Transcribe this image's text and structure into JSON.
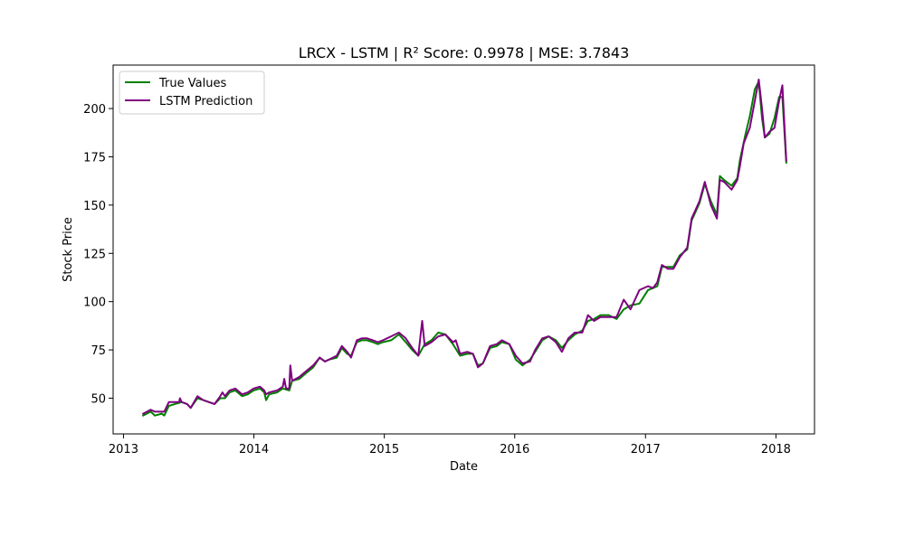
{
  "chart_data": {
    "type": "line",
    "title": "LRCX - LSTM | R² Score: 0.9978 | MSE: 3.7843",
    "xlabel": "Date",
    "ylabel": "Stock Price",
    "xlim": [
      "2012-12-03",
      "2018-04-19"
    ],
    "ylim": [
      31.5,
      222.5
    ],
    "x_ticks": [
      {
        "value": "2013-01-01",
        "label": "2013"
      },
      {
        "value": "2014-01-01",
        "label": "2014"
      },
      {
        "value": "2015-01-01",
        "label": "2015"
      },
      {
        "value": "2016-01-01",
        "label": "2016"
      },
      {
        "value": "2017-01-01",
        "label": "2017"
      },
      {
        "value": "2018-01-01",
        "label": "2018"
      }
    ],
    "y_ticks": [
      50,
      75,
      100,
      125,
      150,
      175,
      200
    ],
    "grid": false,
    "legend_position": "upper left",
    "series": [
      {
        "name": "True Values",
        "color": "#008000",
        "points": [
          [
            "2013-02-25",
            41
          ],
          [
            "2013-03-18",
            43
          ],
          [
            "2013-03-30",
            41
          ],
          [
            "2013-04-18",
            42
          ],
          [
            "2013-04-25",
            41
          ],
          [
            "2013-05-08",
            46
          ],
          [
            "2013-05-25",
            47
          ],
          [
            "2013-06-13",
            48
          ],
          [
            "2013-06-28",
            47
          ],
          [
            "2013-07-08",
            45
          ],
          [
            "2013-07-27",
            50
          ],
          [
            "2013-08-12",
            49
          ],
          [
            "2013-08-28",
            48
          ],
          [
            "2013-09-13",
            47
          ],
          [
            "2013-09-29",
            50
          ],
          [
            "2013-10-12",
            50
          ],
          [
            "2013-10-25",
            53
          ],
          [
            "2013-11-10",
            54
          ],
          [
            "2013-11-29",
            51
          ],
          [
            "2013-12-15",
            52
          ],
          [
            "2013-12-31",
            54
          ],
          [
            "2014-01-18",
            55
          ],
          [
            "2014-01-30",
            53
          ],
          [
            "2014-02-04",
            49
          ],
          [
            "2014-02-13",
            52
          ],
          [
            "2014-03-07",
            53
          ],
          [
            "2014-03-23",
            55
          ],
          [
            "2014-04-10",
            54
          ],
          [
            "2014-04-18",
            59
          ],
          [
            "2014-05-08",
            60
          ],
          [
            "2014-05-27",
            63
          ],
          [
            "2014-06-16",
            66
          ],
          [
            "2014-07-04",
            71
          ],
          [
            "2014-07-19",
            69
          ],
          [
            "2014-07-30",
            70
          ],
          [
            "2014-08-21",
            71
          ],
          [
            "2014-09-04",
            76
          ],
          [
            "2014-09-19",
            73
          ],
          [
            "2014-09-30",
            72
          ],
          [
            "2014-10-16",
            79
          ],
          [
            "2014-10-30",
            80
          ],
          [
            "2014-11-14",
            80
          ],
          [
            "2014-11-30",
            79
          ],
          [
            "2014-12-14",
            78
          ],
          [
            "2014-12-28",
            79
          ],
          [
            "2015-01-20",
            80
          ],
          [
            "2015-02-11",
            83
          ],
          [
            "2015-03-02",
            79
          ],
          [
            "2015-03-20",
            75
          ],
          [
            "2015-04-06",
            72
          ],
          [
            "2015-04-24",
            78
          ],
          [
            "2015-05-13",
            80
          ],
          [
            "2015-06-01",
            84
          ],
          [
            "2015-06-21",
            83
          ],
          [
            "2015-07-12",
            78
          ],
          [
            "2015-08-01",
            72
          ],
          [
            "2015-08-21",
            73
          ],
          [
            "2015-09-06",
            73
          ],
          [
            "2015-09-20",
            67
          ],
          [
            "2015-10-04",
            68
          ],
          [
            "2015-10-24",
            76
          ],
          [
            "2015-11-12",
            77
          ],
          [
            "2015-11-26",
            79
          ],
          [
            "2015-12-17",
            78
          ],
          [
            "2016-01-04",
            70
          ],
          [
            "2016-01-23",
            67
          ],
          [
            "2016-02-13",
            70
          ],
          [
            "2016-02-27",
            74
          ],
          [
            "2016-03-18",
            80
          ],
          [
            "2016-04-05",
            82
          ],
          [
            "2016-04-25",
            80
          ],
          [
            "2016-05-12",
            76
          ],
          [
            "2016-05-30",
            80
          ],
          [
            "2016-06-17",
            83
          ],
          [
            "2016-07-08",
            85
          ],
          [
            "2016-07-24",
            90
          ],
          [
            "2016-08-10",
            91
          ],
          [
            "2016-08-28",
            93
          ],
          [
            "2016-09-20",
            93
          ],
          [
            "2016-10-12",
            91
          ],
          [
            "2016-11-01",
            96
          ],
          [
            "2016-11-20",
            98
          ],
          [
            "2016-12-15",
            99
          ],
          [
            "2017-01-08",
            106
          ],
          [
            "2017-01-22",
            107
          ],
          [
            "2017-02-03",
            108
          ],
          [
            "2017-02-16",
            118
          ],
          [
            "2017-03-05",
            118
          ],
          [
            "2017-03-20",
            118
          ],
          [
            "2017-04-07",
            124
          ],
          [
            "2017-04-28",
            127
          ],
          [
            "2017-05-10",
            142
          ],
          [
            "2017-06-01",
            151
          ],
          [
            "2017-06-16",
            161
          ],
          [
            "2017-07-03",
            152
          ],
          [
            "2017-07-20",
            145
          ],
          [
            "2017-07-28",
            165
          ],
          [
            "2017-08-09",
            163
          ],
          [
            "2017-08-30",
            160
          ],
          [
            "2017-09-15",
            164
          ],
          [
            "2017-09-22",
            173
          ],
          [
            "2017-10-07",
            186
          ],
          [
            "2017-10-20",
            196
          ],
          [
            "2017-11-03",
            210
          ],
          [
            "2017-11-14",
            214
          ],
          [
            "2017-11-23",
            195
          ],
          [
            "2017-12-01",
            185
          ],
          [
            "2017-12-14",
            187
          ],
          [
            "2017-12-28",
            195
          ],
          [
            "2018-01-10",
            206
          ],
          [
            "2018-01-19",
            206
          ],
          [
            "2018-01-30",
            172
          ]
        ]
      },
      {
        "name": "LSTM Prediction",
        "color": "#800080",
        "points": [
          [
            "2013-02-25",
            42
          ],
          [
            "2013-03-18",
            44
          ],
          [
            "2013-03-30",
            43
          ],
          [
            "2013-04-18",
            43
          ],
          [
            "2013-04-25",
            43
          ],
          [
            "2013-05-08",
            48
          ],
          [
            "2013-05-25",
            48
          ],
          [
            "2013-06-06",
            48
          ],
          [
            "2013-06-08",
            50
          ],
          [
            "2013-06-13",
            48
          ],
          [
            "2013-06-28",
            47
          ],
          [
            "2013-07-08",
            45
          ],
          [
            "2013-07-27",
            51
          ],
          [
            "2013-08-12",
            49
          ],
          [
            "2013-08-28",
            48
          ],
          [
            "2013-09-13",
            47
          ],
          [
            "2013-09-29",
            51
          ],
          [
            "2013-10-05",
            53
          ],
          [
            "2013-10-12",
            51
          ],
          [
            "2013-10-25",
            54
          ],
          [
            "2013-11-10",
            55
          ],
          [
            "2013-11-29",
            52
          ],
          [
            "2013-12-15",
            53
          ],
          [
            "2013-12-31",
            55
          ],
          [
            "2014-01-18",
            56
          ],
          [
            "2014-01-30",
            54
          ],
          [
            "2014-02-04",
            52
          ],
          [
            "2014-02-13",
            53
          ],
          [
            "2014-03-07",
            54
          ],
          [
            "2014-03-23",
            56
          ],
          [
            "2014-03-27",
            60
          ],
          [
            "2014-04-01",
            55
          ],
          [
            "2014-04-10",
            55
          ],
          [
            "2014-04-13",
            67
          ],
          [
            "2014-04-18",
            59
          ],
          [
            "2014-05-08",
            61
          ],
          [
            "2014-05-27",
            64
          ],
          [
            "2014-06-16",
            67
          ],
          [
            "2014-07-04",
            71
          ],
          [
            "2014-07-19",
            69
          ],
          [
            "2014-07-30",
            70
          ],
          [
            "2014-08-21",
            72
          ],
          [
            "2014-09-04",
            77
          ],
          [
            "2014-09-19",
            74
          ],
          [
            "2014-09-30",
            71
          ],
          [
            "2014-10-16",
            80
          ],
          [
            "2014-10-30",
            81
          ],
          [
            "2014-11-14",
            81
          ],
          [
            "2014-11-30",
            80
          ],
          [
            "2014-12-14",
            79
          ],
          [
            "2014-12-28",
            80
          ],
          [
            "2015-01-20",
            82
          ],
          [
            "2015-02-11",
            84
          ],
          [
            "2015-03-02",
            81
          ],
          [
            "2015-03-20",
            76
          ],
          [
            "2015-04-06",
            72
          ],
          [
            "2015-04-17",
            90
          ],
          [
            "2015-04-24",
            77
          ],
          [
            "2015-05-13",
            79
          ],
          [
            "2015-06-01",
            82
          ],
          [
            "2015-06-21",
            83
          ],
          [
            "2015-07-12",
            79
          ],
          [
            "2015-07-20",
            80
          ],
          [
            "2015-08-01",
            73
          ],
          [
            "2015-08-21",
            74
          ],
          [
            "2015-09-06",
            73
          ],
          [
            "2015-09-20",
            66
          ],
          [
            "2015-10-04",
            68
          ],
          [
            "2015-10-24",
            77
          ],
          [
            "2015-11-12",
            78
          ],
          [
            "2015-11-26",
            80
          ],
          [
            "2015-12-17",
            78
          ],
          [
            "2016-01-04",
            72
          ],
          [
            "2016-01-23",
            68
          ],
          [
            "2016-02-13",
            69
          ],
          [
            "2016-02-27",
            75
          ],
          [
            "2016-03-18",
            81
          ],
          [
            "2016-04-05",
            82
          ],
          [
            "2016-04-25",
            79
          ],
          [
            "2016-05-12",
            74
          ],
          [
            "2016-05-30",
            81
          ],
          [
            "2016-06-17",
            84
          ],
          [
            "2016-07-08",
            84
          ],
          [
            "2016-07-24",
            93
          ],
          [
            "2016-08-10",
            90
          ],
          [
            "2016-08-28",
            92
          ],
          [
            "2016-09-20",
            92
          ],
          [
            "2016-10-12",
            92
          ],
          [
            "2016-11-01",
            101
          ],
          [
            "2016-11-20",
            96
          ],
          [
            "2016-12-15",
            106
          ],
          [
            "2017-01-08",
            108
          ],
          [
            "2017-01-22",
            107
          ],
          [
            "2017-02-03",
            110
          ],
          [
            "2017-02-16",
            119
          ],
          [
            "2017-03-05",
            117
          ],
          [
            "2017-03-20",
            117
          ],
          [
            "2017-04-07",
            123
          ],
          [
            "2017-04-28",
            128
          ],
          [
            "2017-05-10",
            143
          ],
          [
            "2017-06-01",
            152
          ],
          [
            "2017-06-16",
            162
          ],
          [
            "2017-07-03",
            150
          ],
          [
            "2017-07-20",
            143
          ],
          [
            "2017-07-28",
            163
          ],
          [
            "2017-08-09",
            162
          ],
          [
            "2017-08-30",
            158
          ],
          [
            "2017-09-15",
            163
          ],
          [
            "2017-09-22",
            170
          ],
          [
            "2017-10-03",
            182
          ],
          [
            "2017-10-20",
            190
          ],
          [
            "2017-11-03",
            204
          ],
          [
            "2017-11-14",
            215
          ],
          [
            "2017-11-23",
            200
          ],
          [
            "2017-12-01",
            185
          ],
          [
            "2017-12-14",
            188
          ],
          [
            "2017-12-28",
            190
          ],
          [
            "2018-01-10",
            204
          ],
          [
            "2018-01-19",
            212
          ],
          [
            "2018-01-30",
            173
          ]
        ]
      }
    ]
  }
}
